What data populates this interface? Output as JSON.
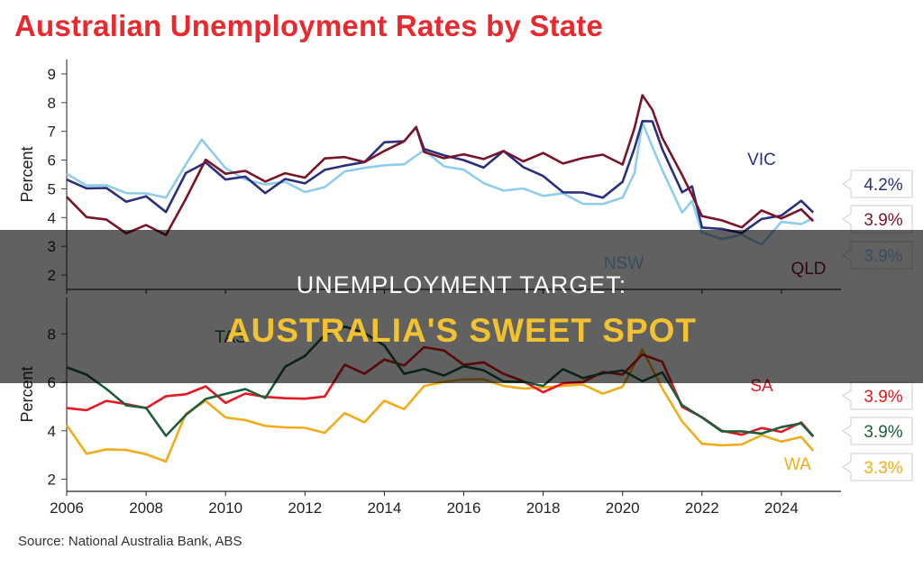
{
  "title": "Australian Unemployment Rates by State",
  "source": "Source: National Australia Bank, ABS",
  "overlay": {
    "line1": "UNEMPLOYMENT TARGET:",
    "line2": "AUSTRALIA'S SWEET SPOT"
  },
  "colors": {
    "title": "#e8292d",
    "VIC": "#2b2f7e",
    "NSW": "#8ecdee",
    "QLD": "#7a1428",
    "SA": "#e8171f",
    "TAS": "#1d5e3c",
    "WA": "#f0ac19",
    "axis": "#444444"
  },
  "chart_data": [
    {
      "type": "line",
      "ylabel": "Percent",
      "ylim": [
        1.5,
        9.5
      ],
      "yticks": [
        2,
        3,
        4,
        5,
        6,
        7,
        8,
        9
      ],
      "xlim": [
        2006,
        2025.5
      ],
      "xticks": [
        2006,
        2008,
        2010,
        2012,
        2014,
        2016,
        2018,
        2020,
        2022,
        2024
      ],
      "series": [
        {
          "name": "NSW",
          "x": [
            2006,
            2006.5,
            2007,
            2007.5,
            2008,
            2008.5,
            2009,
            2009.4,
            2010,
            2010.5,
            2011,
            2011.5,
            2012,
            2012.5,
            2013,
            2013.5,
            2014,
            2014.5,
            2015,
            2015.5,
            2016,
            2016.5,
            2017,
            2017.5,
            2018,
            2018.5,
            2019,
            2019.5,
            2020,
            2020.3,
            2020.5,
            2020.75,
            2021,
            2021.5,
            2021.75,
            2022,
            2022.5,
            2023,
            2023.5,
            2024,
            2024.5,
            2024.8
          ],
          "y": [
            5.5,
            5.2,
            5.0,
            5.0,
            4.7,
            4.8,
            5.8,
            6.7,
            5.8,
            5.2,
            5.3,
            5.1,
            5.0,
            5.0,
            5.6,
            5.8,
            5.7,
            6.0,
            6.2,
            5.9,
            5.6,
            5.2,
            5.0,
            4.9,
            4.9,
            4.7,
            4.6,
            4.4,
            4.7,
            5.6,
            7.2,
            6.6,
            5.5,
            4.3,
            4.5,
            3.5,
            3.3,
            3.3,
            3.2,
            3.7,
            3.9,
            3.9
          ],
          "end_label": "3.9%"
        },
        {
          "name": "VIC",
          "x": [
            2006,
            2006.5,
            2007,
            2007.5,
            2008,
            2008.5,
            2009,
            2009.5,
            2010,
            2010.5,
            2011,
            2011.5,
            2012,
            2012.5,
            2013,
            2013.5,
            2014,
            2014.5,
            2014.8,
            2015,
            2015.5,
            2016,
            2016.5,
            2017,
            2017.5,
            2018,
            2018.5,
            2019,
            2019.5,
            2020,
            2020.3,
            2020.5,
            2020.75,
            2021,
            2021.5,
            2021.75,
            2022,
            2022.5,
            2023,
            2023.5,
            2024,
            2024.5,
            2024.8
          ],
          "y": [
            5.3,
            5.1,
            4.9,
            4.7,
            4.6,
            4.3,
            5.5,
            5.9,
            5.4,
            5.3,
            5.0,
            5.2,
            5.3,
            5.6,
            5.8,
            6.0,
            6.5,
            6.8,
            7.0,
            6.5,
            6.1,
            6.0,
            5.8,
            6.2,
            5.9,
            5.3,
            5.0,
            4.8,
            4.7,
            5.3,
            6.3,
            7.5,
            7.2,
            6.5,
            4.8,
            5.1,
            3.7,
            3.5,
            3.6,
            3.8,
            4.2,
            4.5,
            4.2
          ],
          "end_label": "4.2%"
        },
        {
          "name": "QLD",
          "x": [
            2006,
            2006.5,
            2007,
            2007.5,
            2008,
            2008.5,
            2009,
            2009.5,
            2010,
            2010.5,
            2011,
            2011.5,
            2012,
            2012.5,
            2013,
            2013.5,
            2014,
            2014.5,
            2014.8,
            2015,
            2015.5,
            2016,
            2016.5,
            2017,
            2017.5,
            2018,
            2018.5,
            2019,
            2019.5,
            2020,
            2020.3,
            2020.5,
            2020.75,
            2021,
            2021.5,
            2021.75,
            2022,
            2022.5,
            2023,
            2023.5,
            2024,
            2024.5,
            2024.8
          ],
          "y": [
            4.7,
            4.1,
            3.8,
            3.6,
            3.6,
            3.5,
            4.6,
            6.0,
            5.6,
            5.5,
            5.4,
            5.4,
            5.5,
            6.0,
            6.1,
            6.0,
            6.2,
            6.8,
            7.0,
            6.4,
            6.0,
            6.2,
            6.1,
            6.2,
            6.1,
            6.1,
            6.0,
            6.0,
            6.2,
            5.9,
            7.0,
            8.4,
            7.6,
            6.9,
            5.4,
            4.8,
            4.1,
            3.8,
            3.8,
            4.1,
            4.1,
            4.2,
            3.9
          ],
          "end_label": "3.9%"
        }
      ],
      "series_labels": [
        "VIC",
        "NSW",
        "QLD"
      ]
    },
    {
      "type": "line",
      "ylabel": "Percent",
      "ylim": [
        1.5,
        9.5
      ],
      "yticks": [
        2,
        4,
        6,
        8
      ],
      "xlim": [
        2006,
        2025.5
      ],
      "xticks": [
        2006,
        2008,
        2010,
        2012,
        2014,
        2016,
        2018,
        2020,
        2022,
        2024
      ],
      "xlabel": "",
      "series": [
        {
          "name": "WA",
          "x": [
            2006,
            2006.5,
            2007,
            2007.5,
            2008,
            2008.5,
            2009,
            2009.5,
            2010,
            2010.5,
            2011,
            2011.5,
            2012,
            2012.5,
            2013,
            2013.5,
            2014,
            2014.5,
            2015,
            2015.5,
            2016,
            2016.5,
            2017,
            2017.5,
            2018,
            2018.5,
            2019,
            2019.5,
            2020,
            2020.5,
            2021,
            2021.5,
            2022,
            2022.5,
            2023,
            2023.5,
            2024,
            2024.5,
            2024.8
          ],
          "y": [
            4.1,
            3.2,
            3.1,
            3.3,
            3.0,
            2.7,
            4.8,
            5.1,
            4.7,
            4.3,
            4.3,
            4.1,
            4.1,
            4.0,
            4.6,
            4.5,
            5.1,
            5.0,
            5.8,
            6.0,
            6.2,
            6.0,
            6.0,
            5.6,
            5.9,
            5.8,
            5.9,
            5.6,
            5.7,
            7.5,
            5.6,
            4.5,
            3.4,
            3.4,
            3.5,
            3.7,
            3.7,
            3.6,
            3.3
          ],
          "end_label": "3.3%"
        },
        {
          "name": "SA",
          "x": [
            2006,
            2006.5,
            2007,
            2007.5,
            2008,
            2008.5,
            2009,
            2009.5,
            2010,
            2010.5,
            2011,
            2011.5,
            2012,
            2012.5,
            2013,
            2013.5,
            2014,
            2014.5,
            2015,
            2015.5,
            2016,
            2016.5,
            2017,
            2017.5,
            2018,
            2018.5,
            2019,
            2019.5,
            2020,
            2020.5,
            2021,
            2021.5,
            2022,
            2022.5,
            2023,
            2023.5,
            2024,
            2024.5,
            2024.8
          ],
          "y": [
            4.8,
            5.0,
            5.1,
            5.2,
            4.9,
            5.4,
            5.6,
            5.7,
            5.3,
            5.4,
            5.5,
            5.3,
            5.3,
            5.5,
            6.6,
            6.5,
            6.8,
            6.8,
            7.4,
            7.3,
            6.8,
            6.7,
            6.5,
            5.9,
            5.7,
            5.9,
            6.0,
            6.5,
            6.2,
            7.3,
            6.7,
            5.1,
            4.5,
            4.0,
            3.9,
            4.0,
            4.1,
            4.2,
            3.9
          ],
          "end_label": "3.9%"
        },
        {
          "name": "TAS",
          "x": [
            2006,
            2006.5,
            2007,
            2007.5,
            2008,
            2008.5,
            2009,
            2009.5,
            2010,
            2010.5,
            2011,
            2011.5,
            2012,
            2012.5,
            2013,
            2013.5,
            2014,
            2014.5,
            2015,
            2015.5,
            2016,
            2016.5,
            2017,
            2017.5,
            2018,
            2018.5,
            2019,
            2019.5,
            2020,
            2020.5,
            2021,
            2021.5,
            2022,
            2022.5,
            2023,
            2023.5,
            2024,
            2024.5,
            2024.8
          ],
          "y": [
            6.6,
            6.4,
            5.6,
            5.2,
            4.8,
            3.9,
            4.6,
            5.3,
            5.6,
            5.6,
            5.5,
            6.5,
            7.2,
            7.9,
            8.3,
            8.1,
            7.4,
            6.5,
            6.4,
            6.4,
            6.6,
            6.5,
            6.1,
            5.9,
            6.0,
            6.4,
            6.3,
            6.3,
            6.5,
            6.1,
            6.3,
            5.2,
            4.4,
            4.1,
            3.9,
            3.9,
            4.2,
            4.2,
            3.9
          ],
          "end_label": "3.9%"
        }
      ],
      "series_labels": [
        "TAS",
        "SA",
        "WA"
      ]
    }
  ]
}
